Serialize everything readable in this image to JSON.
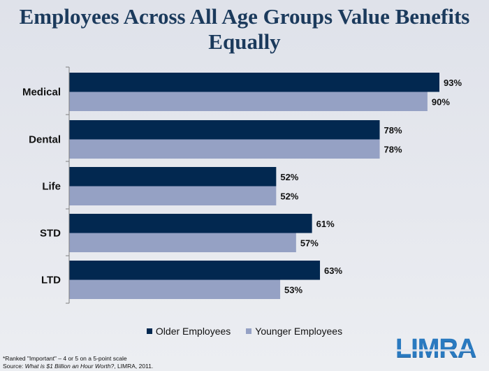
{
  "title_line1": "Employees Across All Age Groups Value Benefits",
  "title_line2": "Equally",
  "chart_data": {
    "type": "bar",
    "orientation": "horizontal",
    "categories": [
      "Medical",
      "Dental",
      "Life",
      "STD",
      "LTD"
    ],
    "series": [
      {
        "name": "Older Employees",
        "values": [
          93,
          78,
          52,
          61,
          63
        ],
        "labels": [
          "93%",
          "78%",
          "52%",
          "61%",
          "63%"
        ],
        "color": "#022850"
      },
      {
        "name": "Younger Employees",
        "values": [
          90,
          78,
          52,
          57,
          53
        ],
        "labels": [
          "90%",
          "78%",
          "52%",
          "57%",
          "53%"
        ],
        "color": "#95a1c4"
      }
    ],
    "xlim": [
      0,
      100
    ],
    "value_axis_visible": false,
    "legend_position": "bottom"
  },
  "footnote": {
    "line1": "*Ranked  \"Important\" – 4 or 5 on a 5-point scale",
    "source_prefix": "Source: ",
    "source_title": "What is $1 Billion an Hour Worth?",
    "source_suffix": ", LIMRA, 2011."
  },
  "logo_text": "LIMRA"
}
